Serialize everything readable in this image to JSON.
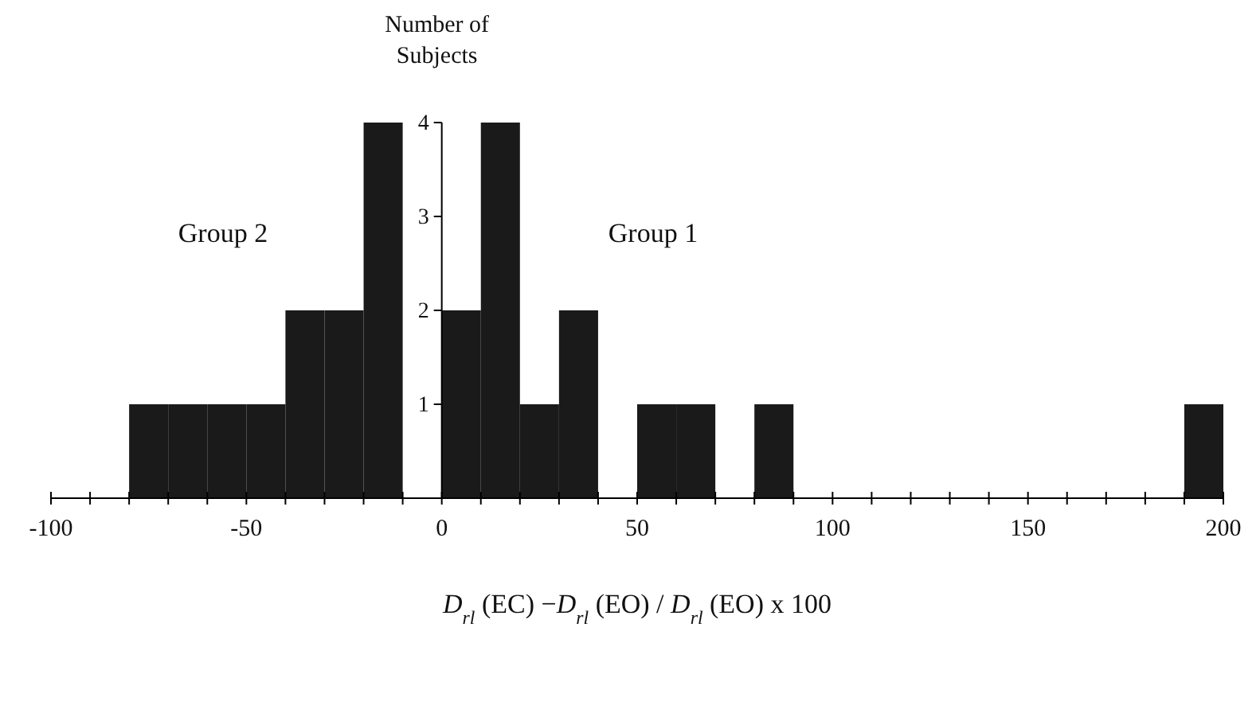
{
  "chart_data": {
    "type": "histogram",
    "bins": [
      -80,
      -70,
      -60,
      -50,
      -40,
      -30,
      -20,
      -10,
      0,
      10,
      20,
      30,
      40,
      50,
      60,
      70,
      80,
      90,
      100,
      110,
      120,
      130,
      140,
      150,
      160,
      170,
      180,
      190,
      200
    ],
    "values": [
      1,
      1,
      1,
      1,
      2,
      2,
      4,
      0,
      2,
      4,
      1,
      2,
      0,
      1,
      1,
      0,
      1,
      0,
      0,
      0,
      0,
      0,
      0,
      0,
      0,
      0,
      0,
      1
    ],
    "color": "#1a1a1a",
    "xlim": [
      -100,
      200
    ],
    "xticks": [
      -100,
      {
        "value": -90,
        "label": null
      },
      {
        "value": -80,
        "label": null
      },
      {
        "value": -70,
        "label": null
      },
      {
        "value": -60,
        "label": null
      },
      -50,
      {
        "value": -40,
        "label": null
      },
      {
        "value": -30,
        "label": null
      },
      {
        "value": -20,
        "label": null
      },
      {
        "value": -10,
        "label": null
      },
      0,
      {
        "value": 10,
        "label": null
      },
      {
        "value": 20,
        "label": null
      },
      {
        "value": 30,
        "label": null
      },
      {
        "value": 40,
        "label": null
      },
      50,
      {
        "value": 60,
        "label": null
      },
      {
        "value": 70,
        "label": null
      },
      {
        "value": 80,
        "label": null
      },
      {
        "value": 90,
        "label": null
      },
      100,
      {
        "value": 110,
        "label": null
      },
      {
        "value": 120,
        "label": null
      },
      {
        "value": 130,
        "label": null
      },
      {
        "value": 140,
        "label": null
      },
      150,
      {
        "value": 160,
        "label": null
      },
      {
        "value": 170,
        "label": null
      },
      {
        "value": 180,
        "label": null
      },
      {
        "value": 190,
        "label": null
      },
      200
    ],
    "ylim": [
      0,
      4
    ],
    "yticks": [
      1,
      2,
      3,
      4
    ],
    "ylabel": "Number of Subjects",
    "xlabel": "D$_{rl}$ (EC) −D$_{rl}$ (EO) / D$_{rl}$ (EO) x 100",
    "annotations": [
      "Group 2",
      "Group 1"
    ]
  }
}
